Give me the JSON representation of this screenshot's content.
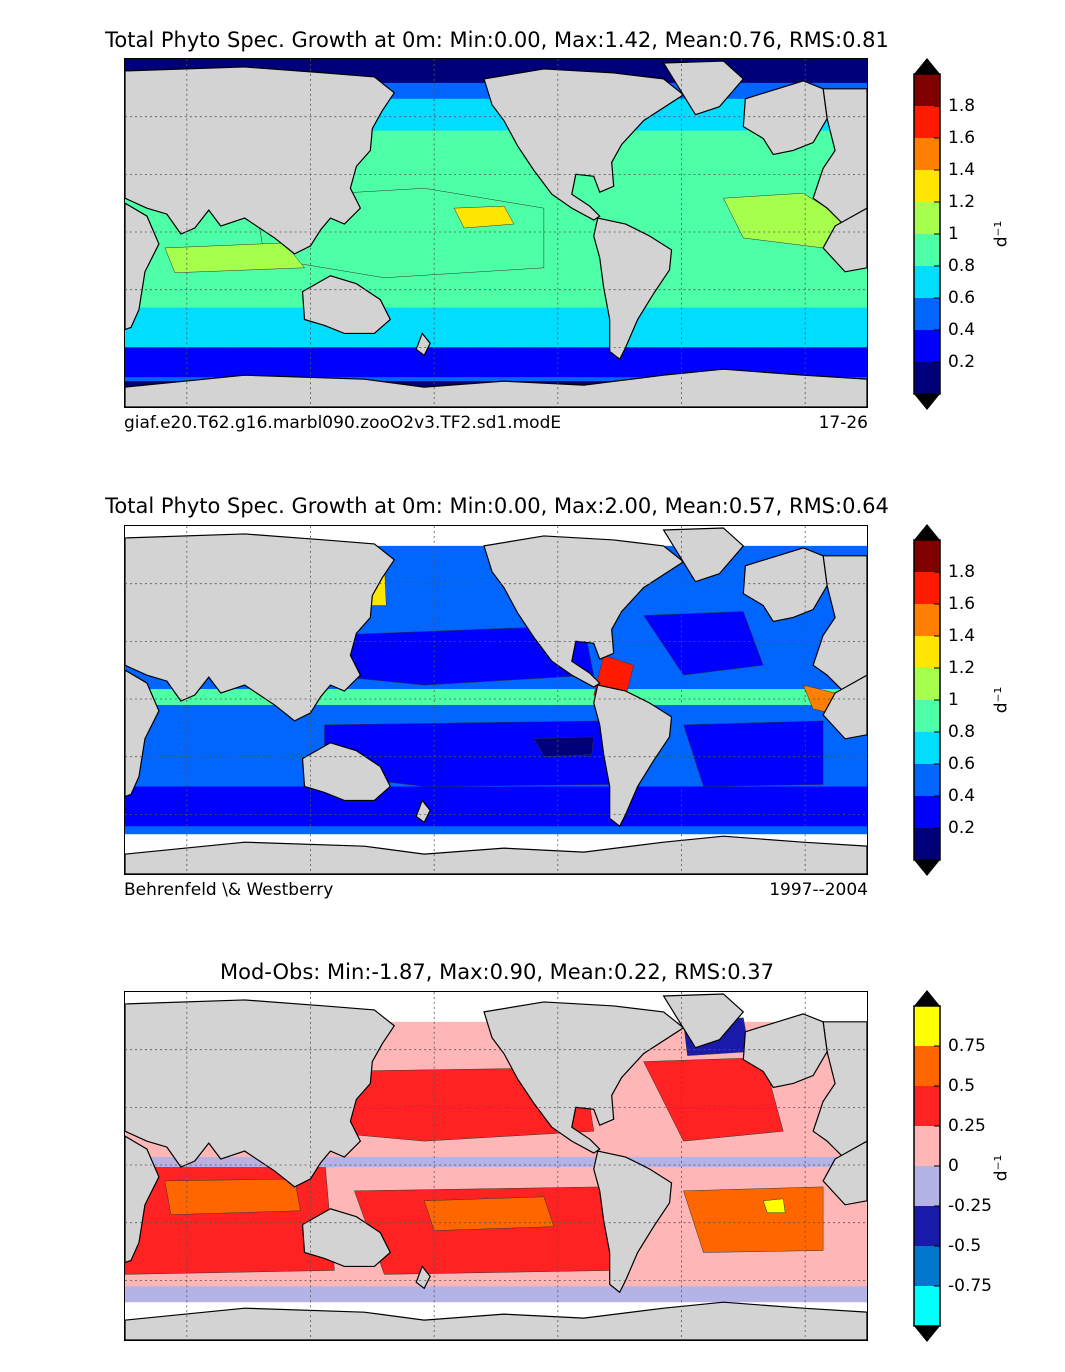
{
  "chart_data": [
    {
      "type": "heatmap",
      "title": "Total Phyto Spec. Growth at 0m: Min:0.00, Max:1.42, Mean:0.76, RMS:0.81",
      "stats": {
        "min": 0.0,
        "max": 1.42,
        "mean": 0.76,
        "rms": 0.81
      },
      "source_label": "giaf.e20.T62.g16.marbl090.zooO2v3.TF2.sd1.modE",
      "period_label": "17-26",
      "colorbar": {
        "unit": "d⁻¹",
        "levels": [
          0,
          0.2,
          0.4,
          0.6,
          0.8,
          1.0,
          1.2,
          1.4,
          1.6,
          1.8,
          2.0
        ],
        "tick_labels": [
          "0.2",
          "0.4",
          "0.6",
          "0.8",
          "1",
          "1.2",
          "1.4",
          "1.6",
          "1.8"
        ],
        "colors": [
          "#00007a",
          "#0000ff",
          "#0066ff",
          "#00ddff",
          "#4dffa6",
          "#a6ff4d",
          "#ffe600",
          "#ff8000",
          "#ff1a00",
          "#800000"
        ],
        "extend": "both"
      }
    },
    {
      "type": "heatmap",
      "title": "Total Phyto Spec. Growth at 0m: Min:0.00, Max:2.00, Mean:0.57, RMS:0.64",
      "stats": {
        "min": 0.0,
        "max": 2.0,
        "mean": 0.57,
        "rms": 0.64
      },
      "source_label": "Behrenfeld \\& Westberry",
      "period_label": "1997--2004",
      "colorbar": {
        "unit": "d⁻¹",
        "levels": [
          0,
          0.2,
          0.4,
          0.6,
          0.8,
          1.0,
          1.2,
          1.4,
          1.6,
          1.8,
          2.0
        ],
        "tick_labels": [
          "0.2",
          "0.4",
          "0.6",
          "0.8",
          "1",
          "1.2",
          "1.4",
          "1.6",
          "1.8"
        ],
        "colors": [
          "#00007a",
          "#0000ff",
          "#0066ff",
          "#00ddff",
          "#4dffa6",
          "#a6ff4d",
          "#ffe600",
          "#ff8000",
          "#ff1a00",
          "#800000"
        ],
        "extend": "both"
      }
    },
    {
      "type": "heatmap",
      "title": "Mod-Obs: Min:-1.87, Max:0.90, Mean:0.22, RMS:0.37",
      "stats": {
        "min": -1.87,
        "max": 0.9,
        "mean": 0.22,
        "rms": 0.37
      },
      "colorbar": {
        "unit": "d⁻¹",
        "levels": [
          -1.0,
          -0.75,
          -0.5,
          -0.25,
          0,
          0.25,
          0.5,
          0.75,
          1.0
        ],
        "tick_labels": [
          "-0.75",
          "-0.5",
          "-0.25",
          "0",
          "0.25",
          "0.5",
          "0.75"
        ],
        "colors": [
          "#00ffff",
          "#0077cc",
          "#1a1aaa",
          "#b3b3e6",
          "#ffb6b6",
          "#ff2222",
          "#ff6600",
          "#ffff00"
        ],
        "extend": "both"
      }
    }
  ],
  "colors": {
    "land": "#d3d3d3",
    "missing": "#ffffff",
    "grid": "#555555"
  }
}
